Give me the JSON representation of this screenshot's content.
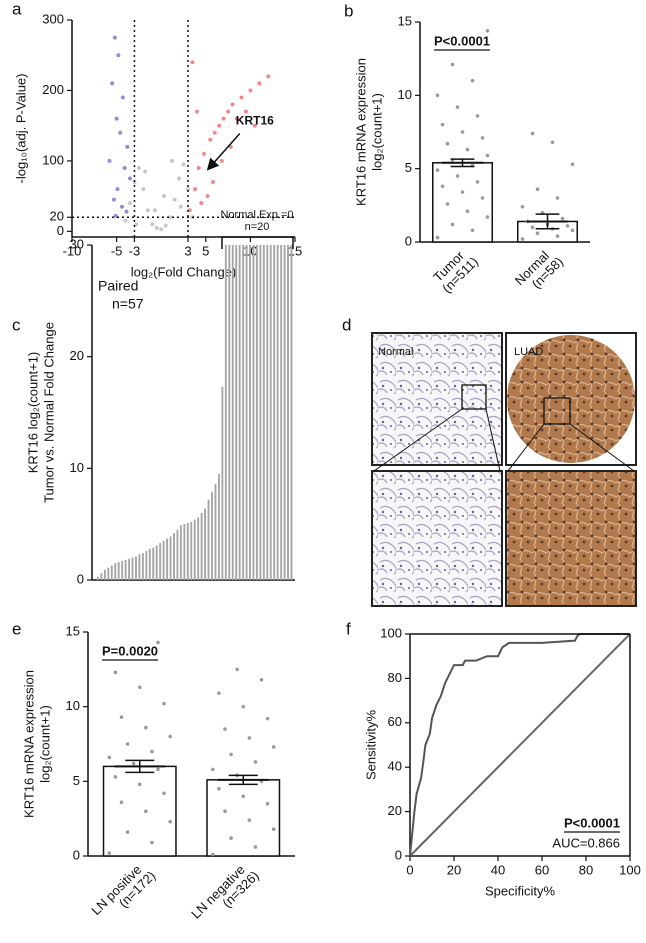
{
  "chart_data": [
    {
      "panel": "a",
      "type": "scatter",
      "x_label": "log₂(Fold Change)",
      "y_label": [
        "-log₁₀(adj. P-Value)"
      ],
      "xlim": [
        -10,
        15
      ],
      "ylim": [
        -8,
        300
      ],
      "xticks": [
        -10,
        -5,
        -3,
        3,
        5,
        10,
        15
      ],
      "yticks": [
        0,
        20,
        100,
        200,
        300
      ],
      "vlines": [
        -3,
        3
      ],
      "hlines": [
        20
      ],
      "annotation": {
        "text": "KRT16",
        "x": 5,
        "y": 85
      },
      "series": [
        {
          "color": "#8f8fd6",
          "x": [
            -5.2,
            -4.8,
            -5.5,
            -4.3,
            -5.0,
            -4.6,
            -3.8,
            -5.8,
            -4.1,
            -3.5,
            -4.9,
            -5.3,
            -4.4,
            -3.9,
            -5.1
          ],
          "y": [
            275,
            250,
            210,
            190,
            160,
            140,
            120,
            100,
            90,
            75,
            60,
            45,
            35,
            28,
            22
          ]
        },
        {
          "color": "#c8c8c8",
          "x": [
            -4,
            -3.5,
            -3,
            -2.5,
            -2,
            -1.5,
            -1,
            -0.5,
            0,
            0.5,
            1,
            1.5,
            2,
            2.5,
            3,
            3.5,
            -1.8,
            1.2,
            0.3,
            -0.7,
            2.2,
            -2.8
          ],
          "y": [
            15,
            40,
            70,
            90,
            60,
            30,
            10,
            5,
            3,
            8,
            20,
            45,
            75,
            95,
            60,
            20,
            85,
            100,
            50,
            30,
            35,
            10
          ]
        },
        {
          "color": "#f08a8a",
          "x": [
            3.2,
            3.8,
            4.2,
            4.8,
            5.5,
            6,
            6.5,
            7,
            7.5,
            8,
            8.5,
            9,
            9.5,
            10,
            10.5,
            11,
            12,
            4.5,
            5.8,
            6.8,
            7.8,
            3.5,
            4.0,
            5.2
          ],
          "y": [
            30,
            60,
            90,
            110,
            130,
            140,
            150,
            160,
            170,
            180,
            160,
            190,
            170,
            200,
            150,
            210,
            220,
            40,
            70,
            100,
            120,
            240,
            170,
            50
          ]
        }
      ]
    },
    {
      "panel": "b",
      "type": "bar",
      "y_label": [
        "KRT16 mRNA expression",
        "log₂(count+1)"
      ],
      "categories": [
        "Tumor",
        "Normal"
      ],
      "category_counts": [
        "(n=511)",
        "(n=58)"
      ],
      "values": [
        5.4,
        1.4
      ],
      "errors": [
        0.25,
        0.5
      ],
      "color": "#ffffff",
      "points": [
        [
          0.3,
          0.8,
          1.2,
          1.7,
          2.1,
          2.6,
          3.0,
          3.4,
          3.8,
          4.1,
          4.5,
          4.9,
          5.2,
          5.6,
          5.9,
          6.3,
          6.7,
          7.1,
          7.5,
          8.0,
          8.6,
          9.2,
          10.0,
          11.0,
          12.1,
          14.4
        ],
        [
          0.2,
          0.4,
          0.6,
          0.8,
          0.9,
          1.0,
          1.1,
          1.2,
          1.4,
          1.6,
          2.0,
          2.4,
          3.0,
          3.6,
          5.3,
          6.8,
          7.4
        ]
      ],
      "ylim": [
        0,
        15
      ],
      "yticks": [
        0,
        5,
        10,
        15
      ],
      "annotation": "P<0.0001"
    },
    {
      "panel": "c",
      "type": "bar",
      "y_label": [
        "KRT16 log₂(count+1)",
        "Tumor vs. Normal Fold Change"
      ],
      "values": [
        0.3,
        0.6,
        0.9,
        1.1,
        1.3,
        1.5,
        1.6,
        1.7,
        1.8,
        1.9,
        2.0,
        2.1,
        2.3,
        2.4,
        2.6,
        2.8,
        2.9,
        3.1,
        3.3,
        3.5,
        3.7,
        3.9,
        4.2,
        4.5,
        4.9,
        5.0,
        5.1,
        5.2,
        5.4,
        5.6,
        6.0,
        6.4,
        7.2,
        7.9,
        8.6,
        9.5,
        17.3,
        30,
        30,
        30,
        30,
        30,
        30,
        30,
        30,
        30,
        30,
        30,
        30,
        30,
        30,
        30,
        30,
        30,
        30,
        30,
        30
      ],
      "color": "#a6a6a6",
      "ylim": [
        0,
        30
      ],
      "yticks": [
        0,
        10,
        20,
        30
      ],
      "notes": [
        "Paired",
        "n=57"
      ],
      "bracket": [
        "Normal Exp.=0",
        "n=20"
      ]
    },
    {
      "panel": "d",
      "type": "image",
      "labels": [
        "Normal",
        "LUAD"
      ]
    },
    {
      "panel": "e",
      "type": "bar",
      "y_label": [
        "KRT16 mRNA expression",
        "log₂(count+1)"
      ],
      "categories": [
        "LN positive",
        "LN negative"
      ],
      "category_counts": [
        "(n=172)",
        "(n=326)"
      ],
      "values": [
        6.0,
        5.1
      ],
      "errors": [
        0.4,
        0.3
      ],
      "color": "#ffffff",
      "points": [
        [
          0.2,
          0.9,
          1.6,
          2.3,
          3.0,
          3.6,
          4.2,
          4.8,
          5.3,
          5.8,
          6.2,
          6.6,
          7.0,
          7.5,
          8.0,
          8.6,
          9.3,
          10.2,
          11.3,
          12.3,
          14.3
        ],
        [
          0.1,
          0.6,
          1.2,
          1.8,
          2.4,
          3.0,
          3.5,
          4.0,
          4.5,
          5.0,
          5.4,
          5.8,
          6.3,
          6.8,
          7.3,
          7.9,
          8.5,
          9.2,
          10.0,
          10.9,
          11.8,
          12.5
        ]
      ],
      "ylim": [
        0,
        15
      ],
      "yticks": [
        0,
        5,
        10,
        15
      ],
      "annotation": "P=0.0020"
    },
    {
      "panel": "f",
      "type": "line",
      "x_label": "Specificity%",
      "y_label": [
        "Sensitivity%"
      ],
      "x": [
        0,
        1,
        2,
        3,
        5,
        6,
        7,
        9,
        10,
        12,
        14,
        16,
        18,
        20,
        24,
        25,
        30,
        35,
        40,
        42,
        45,
        60,
        75,
        76,
        77,
        100
      ],
      "values": [
        0,
        10,
        20,
        28,
        35,
        42,
        50,
        55,
        62,
        68,
        72,
        78,
        82,
        86,
        86,
        88,
        88,
        90,
        90,
        94,
        96,
        96,
        97,
        99,
        100,
        100
      ],
      "color": "#555555",
      "xlim": [
        0,
        100
      ],
      "ylim": [
        0,
        100
      ],
      "xticks": [
        0,
        20,
        40,
        60,
        80,
        100
      ],
      "yticks": [
        0,
        20,
        40,
        60,
        80,
        100
      ],
      "annotation": "P<0.0001",
      "note": "AUC=0.866"
    }
  ]
}
